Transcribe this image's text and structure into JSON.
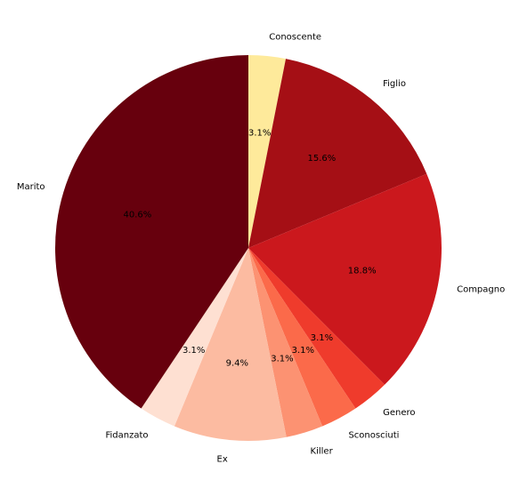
{
  "chart_data": {
    "type": "pie",
    "categories": [
      "Conoscente",
      "Figlio",
      "Compagno",
      "Genero",
      "Sconosciuti",
      "Killer",
      "Ex",
      "Fidanzato",
      "Marito"
    ],
    "values": [
      3.1,
      15.6,
      18.8,
      3.1,
      3.1,
      3.1,
      9.4,
      3.1,
      40.6
    ],
    "value_labels": [
      "3.1%",
      "15.6%",
      "18.8%",
      "3.1%",
      "3.1%",
      "3.1%",
      "9.4%",
      "3.1%",
      "40.6%"
    ],
    "colors": [
      "#feea9b",
      "#a50f15",
      "#cb181d",
      "#ef3b2c",
      "#fb6a4a",
      "#fc9272",
      "#fcbba1",
      "#fee0d2",
      "#67000d"
    ]
  }
}
